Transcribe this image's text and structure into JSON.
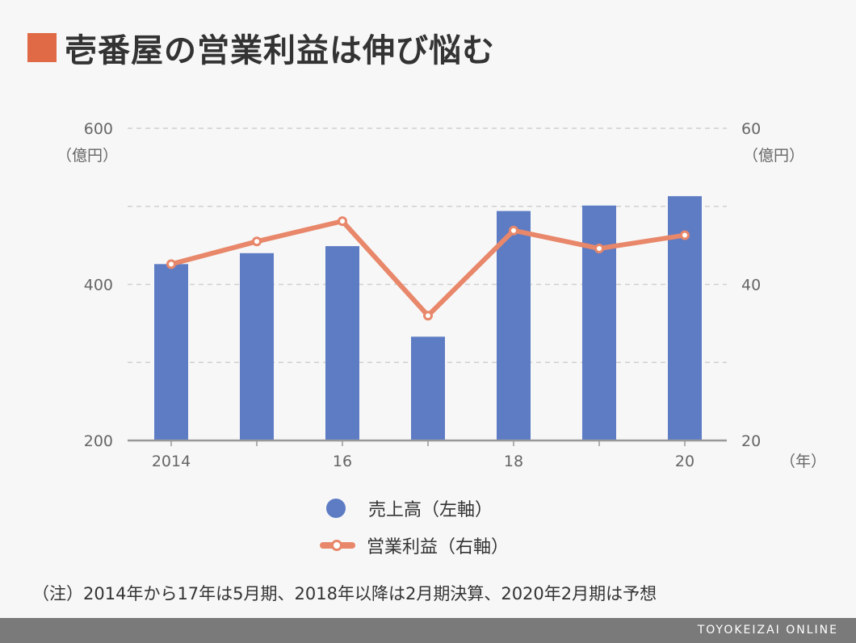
{
  "title": "壱番屋の営業利益は伸び悩む",
  "colors": {
    "accent": "#e06a45",
    "bar": "#5d7cc4",
    "line": "#e8876a"
  },
  "axes": {
    "left_unit": "（億円）",
    "right_unit": "（億円）",
    "x_unit": "（年）"
  },
  "legend": {
    "bar_label": "売上高（左軸）",
    "line_label": "営業利益（右軸）"
  },
  "note": "（注）2014年から17年は5月期、2018年以降は2月期決算、2020年2月期は予想",
  "footer": "TOYOKEIZAI ONLINE",
  "chart_data": {
    "type": "bar+line",
    "categories": [
      "2014",
      "2015",
      "2016",
      "2017",
      "2018",
      "2019",
      "2020"
    ],
    "x_tick_labels": [
      "2014",
      "",
      "16",
      "",
      "18",
      "",
      "20"
    ],
    "series": [
      {
        "name": "売上高（左軸）",
        "type": "bar",
        "axis": "left",
        "values": [
          426,
          440,
          449,
          333,
          494,
          501,
          513
        ]
      },
      {
        "name": "営業利益（右軸）",
        "type": "line",
        "axis": "right",
        "values": [
          42.6,
          45.5,
          48.1,
          36.0,
          46.9,
          44.6,
          46.3
        ]
      }
    ],
    "left_axis": {
      "ylim": [
        200,
        600
      ],
      "ticks": [
        200,
        400,
        600
      ]
    },
    "right_axis": {
      "ylim": [
        20,
        60
      ],
      "ticks": [
        20,
        40,
        60
      ]
    },
    "grid": true
  }
}
